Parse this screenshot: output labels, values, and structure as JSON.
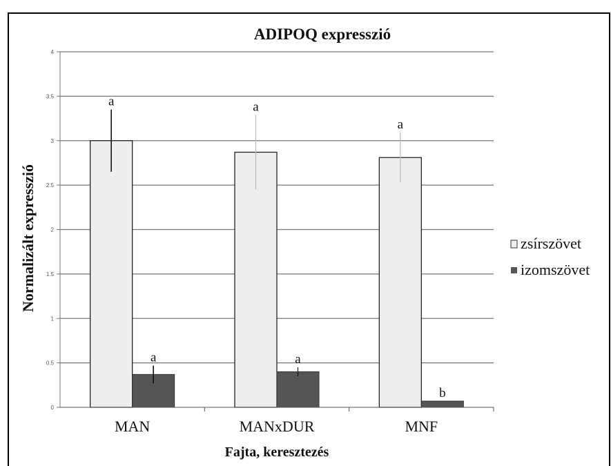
{
  "chart_data": {
    "type": "bar",
    "title": "ADIPOQ expresszió",
    "ylabel": "Normalizált expresszió",
    "xlabel": "Fajta, keresztezés",
    "categories": [
      "MAN",
      "MANxDUR",
      "MNF"
    ],
    "ylim": [
      0,
      4
    ],
    "yticks": [
      "0",
      "0.5",
      "1",
      "1.5",
      "2",
      "2.5",
      "3",
      "3.5",
      "4"
    ],
    "grid": true,
    "legend_position": "right",
    "series": [
      {
        "name": "zsírszövet",
        "color": "#eeeeee",
        "values": [
          3.0,
          2.87,
          2.81
        ],
        "errors": [
          0.35,
          0.42,
          0.28
        ],
        "significance": [
          "a",
          "a",
          "a"
        ]
      },
      {
        "name": "izomszövet",
        "color": "#555555",
        "values": [
          0.37,
          0.4,
          0.07
        ],
        "errors": [
          0.1,
          0.05,
          0.0
        ],
        "significance": [
          "a",
          "a",
          "b"
        ]
      }
    ]
  }
}
